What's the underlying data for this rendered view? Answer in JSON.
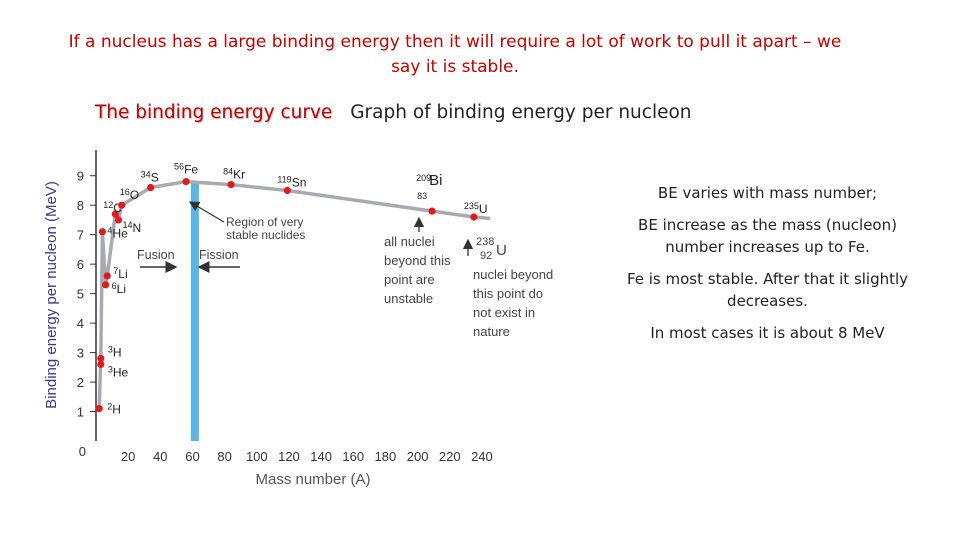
{
  "slide": {
    "title": "If a nucleus has a large binding energy then it will require a lot of work to pull it apart – we say it is stable.",
    "subtitle_red": "The binding energy curve",
    "subtitle_black": "Graph of binding energy per nucleon",
    "notes": [
      "BE varies with mass number;",
      "BE increase as the mass (nucleon) number increases up to Fe.",
      "Fe is most stable. After that it slightly decreases.",
      "In most cases it is about 8 MeV"
    ]
  },
  "chart_data": {
    "type": "scatter",
    "xlabel": "Mass number (A)",
    "ylabel": "Binding energy per nucleon (MeV)",
    "xlim": [
      0,
      250
    ],
    "ylim": [
      0,
      9.5
    ],
    "x_ticks": [
      "20",
      "40",
      "60",
      "80",
      "100",
      "120",
      "140",
      "160",
      "180",
      "200",
      "220",
      "240"
    ],
    "x_tick_values": [
      20,
      40,
      60,
      80,
      100,
      120,
      140,
      160,
      180,
      200,
      220,
      240
    ],
    "y_ticks": [
      "0",
      "1",
      "2",
      "3",
      "4",
      "5",
      "6",
      "7",
      "8",
      "9"
    ],
    "y_tick_values": [
      0,
      1,
      2,
      3,
      4,
      5,
      6,
      7,
      8,
      9
    ],
    "grid": false,
    "points": [
      {
        "mass": "2",
        "sym": "H",
        "x": 2,
        "y": 1.1
      },
      {
        "mass": "3",
        "sym": "H",
        "x": 3,
        "y": 2.8
      },
      {
        "mass": "3",
        "sym": "He",
        "x": 3,
        "y": 2.6
      },
      {
        "mass": "4",
        "sym": "He",
        "x": 4,
        "y": 7.1
      },
      {
        "mass": "6",
        "sym": "Li",
        "x": 6,
        "y": 5.3
      },
      {
        "mass": "7",
        "sym": "Li",
        "x": 7,
        "y": 5.6
      },
      {
        "mass": "12",
        "sym": "C",
        "x": 12,
        "y": 7.7
      },
      {
        "mass": "14",
        "sym": "N",
        "x": 14,
        "y": 7.5
      },
      {
        "mass": "16",
        "sym": "O",
        "x": 16,
        "y": 8.0
      },
      {
        "mass": "34",
        "sym": "S",
        "x": 34,
        "y": 8.6
      },
      {
        "mass": "56",
        "sym": "Fe",
        "x": 56,
        "y": 8.8
      },
      {
        "mass": "84",
        "sym": "Kr",
        "x": 84,
        "y": 8.7
      },
      {
        "mass": "119",
        "sym": "Sn",
        "x": 119,
        "y": 8.5
      },
      {
        "mass": "209",
        "sub": "83",
        "sym": "Bi",
        "x": 209,
        "y": 7.8
      },
      {
        "mass": "235",
        "sym": "U",
        "x": 235,
        "y": 7.6
      }
    ],
    "highlight_band": {
      "x_from": 59,
      "x_to": 64,
      "color": "#5bb6e4"
    },
    "annotations": {
      "region": "Region of very stable nuclides",
      "fusion": "Fusion",
      "fission": "Fission",
      "beyond": "all nuclei beyond this point are unstable",
      "uranium_mass": "238",
      "uranium_number": "92",
      "uranium_symbol": "U",
      "not_exist": "nuclei beyond this point do not exist in nature"
    },
    "colors": {
      "points": "#e01b1b",
      "curve": "#a9a9b3",
      "ylabel": "#3a3a8c",
      "axis": "#333333"
    }
  }
}
